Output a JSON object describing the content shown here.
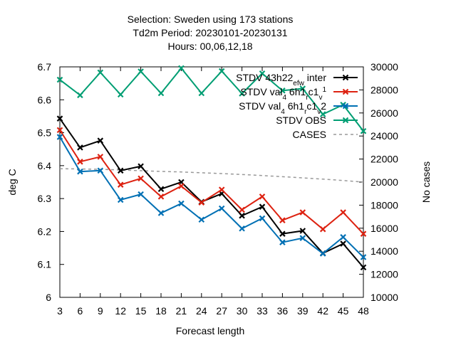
{
  "chart_data": {
    "type": "line",
    "title_lines": [
      "Selection: Sweden using   173 stations",
      "Td2m   Period: 20230101-20230131",
      "Hours:  00,06,12,18"
    ],
    "xlabel": "Forecast length",
    "ylabel": "deg C",
    "y2label": "No cases",
    "x": [
      3,
      6,
      9,
      12,
      15,
      18,
      21,
      24,
      27,
      30,
      33,
      36,
      39,
      42,
      45,
      48
    ],
    "xlim": [
      3,
      48
    ],
    "ylim": [
      6.0,
      6.7
    ],
    "y2lim": [
      10000,
      30000
    ],
    "yticks": [
      "6",
      "6.1",
      "6.2",
      "6.3",
      "6.4",
      "6.5",
      "6.6",
      "6.7"
    ],
    "y2ticks": [
      "10000",
      "12000",
      "14000",
      "16000",
      "18000",
      "20000",
      "22000",
      "24000",
      "26000",
      "28000",
      "30000"
    ],
    "grid": false,
    "legend_position": "top-right",
    "series": [
      {
        "name": "STDV 43h22_ef_w inter",
        "legend_label": {
          "base": "STDV 43h22",
          "parts": [
            [
              "_",
              "ef"
            ],
            [
              "_",
              "w"
            ],
            [
              "",
              " inter"
            ]
          ]
        },
        "color": "#000000",
        "marker": "x",
        "axis": "y",
        "values": [
          6.543,
          6.455,
          6.476,
          6.385,
          6.398,
          6.329,
          6.35,
          6.29,
          6.315,
          6.248,
          6.275,
          6.193,
          6.202,
          6.134,
          6.163,
          6.091
        ]
      },
      {
        "name": "STDV val_4 6h1_r c1_v 1",
        "legend_label": {
          "base": "STDV val",
          "parts": [
            [
              "_",
              "4"
            ],
            [
              "",
              " 6h1"
            ],
            [
              "_",
              "r"
            ],
            [
              "",
              "c1"
            ],
            [
              "_",
              "v"
            ],
            [
              "^",
              "1"
            ]
          ]
        },
        "color": "#dd2211",
        "marker": "x",
        "axis": "y",
        "values": [
          6.508,
          6.412,
          6.427,
          6.342,
          6.361,
          6.306,
          6.338,
          6.288,
          6.327,
          6.266,
          6.306,
          6.234,
          6.258,
          6.207,
          6.258,
          6.193
        ]
      },
      {
        "name": "STDV val_4 6h1_r c1_v 2",
        "legend_label": {
          "base": "STDV val",
          "parts": [
            [
              "_",
              "4"
            ],
            [
              "",
              " 6h1"
            ],
            [
              "_",
              "r"
            ],
            [
              "",
              "c1"
            ],
            [
              "_",
              "v"
            ],
            [
              "",
              "2"
            ]
          ]
        },
        "color": "#0070b4",
        "marker": "x",
        "axis": "y",
        "values": [
          6.487,
          6.382,
          6.385,
          6.296,
          6.313,
          6.256,
          6.285,
          6.236,
          6.27,
          6.209,
          6.24,
          6.167,
          6.18,
          6.133,
          6.183,
          6.122
        ]
      },
      {
        "name": "STDV OBS",
        "legend_label": {
          "base": "STDV OBS",
          "parts": []
        },
        "color": "#009e73",
        "marker": "x",
        "axis": "y",
        "values": [
          6.661,
          6.614,
          6.683,
          6.616,
          6.686,
          6.62,
          6.696,
          6.62,
          6.687,
          6.619,
          6.68,
          6.628,
          6.634,
          6.556,
          6.585,
          6.505
        ]
      },
      {
        "name": "CASES",
        "legend_label": {
          "base": "CASES",
          "parts": []
        },
        "color": "#999999",
        "marker": "none",
        "axis": "y2",
        "dashed": true,
        "values": [
          21160,
          21140,
          21110,
          21050,
          20990,
          20930,
          20880,
          20810,
          20740,
          20660,
          20570,
          20470,
          20370,
          20260,
          20140,
          20000
        ]
      }
    ]
  }
}
